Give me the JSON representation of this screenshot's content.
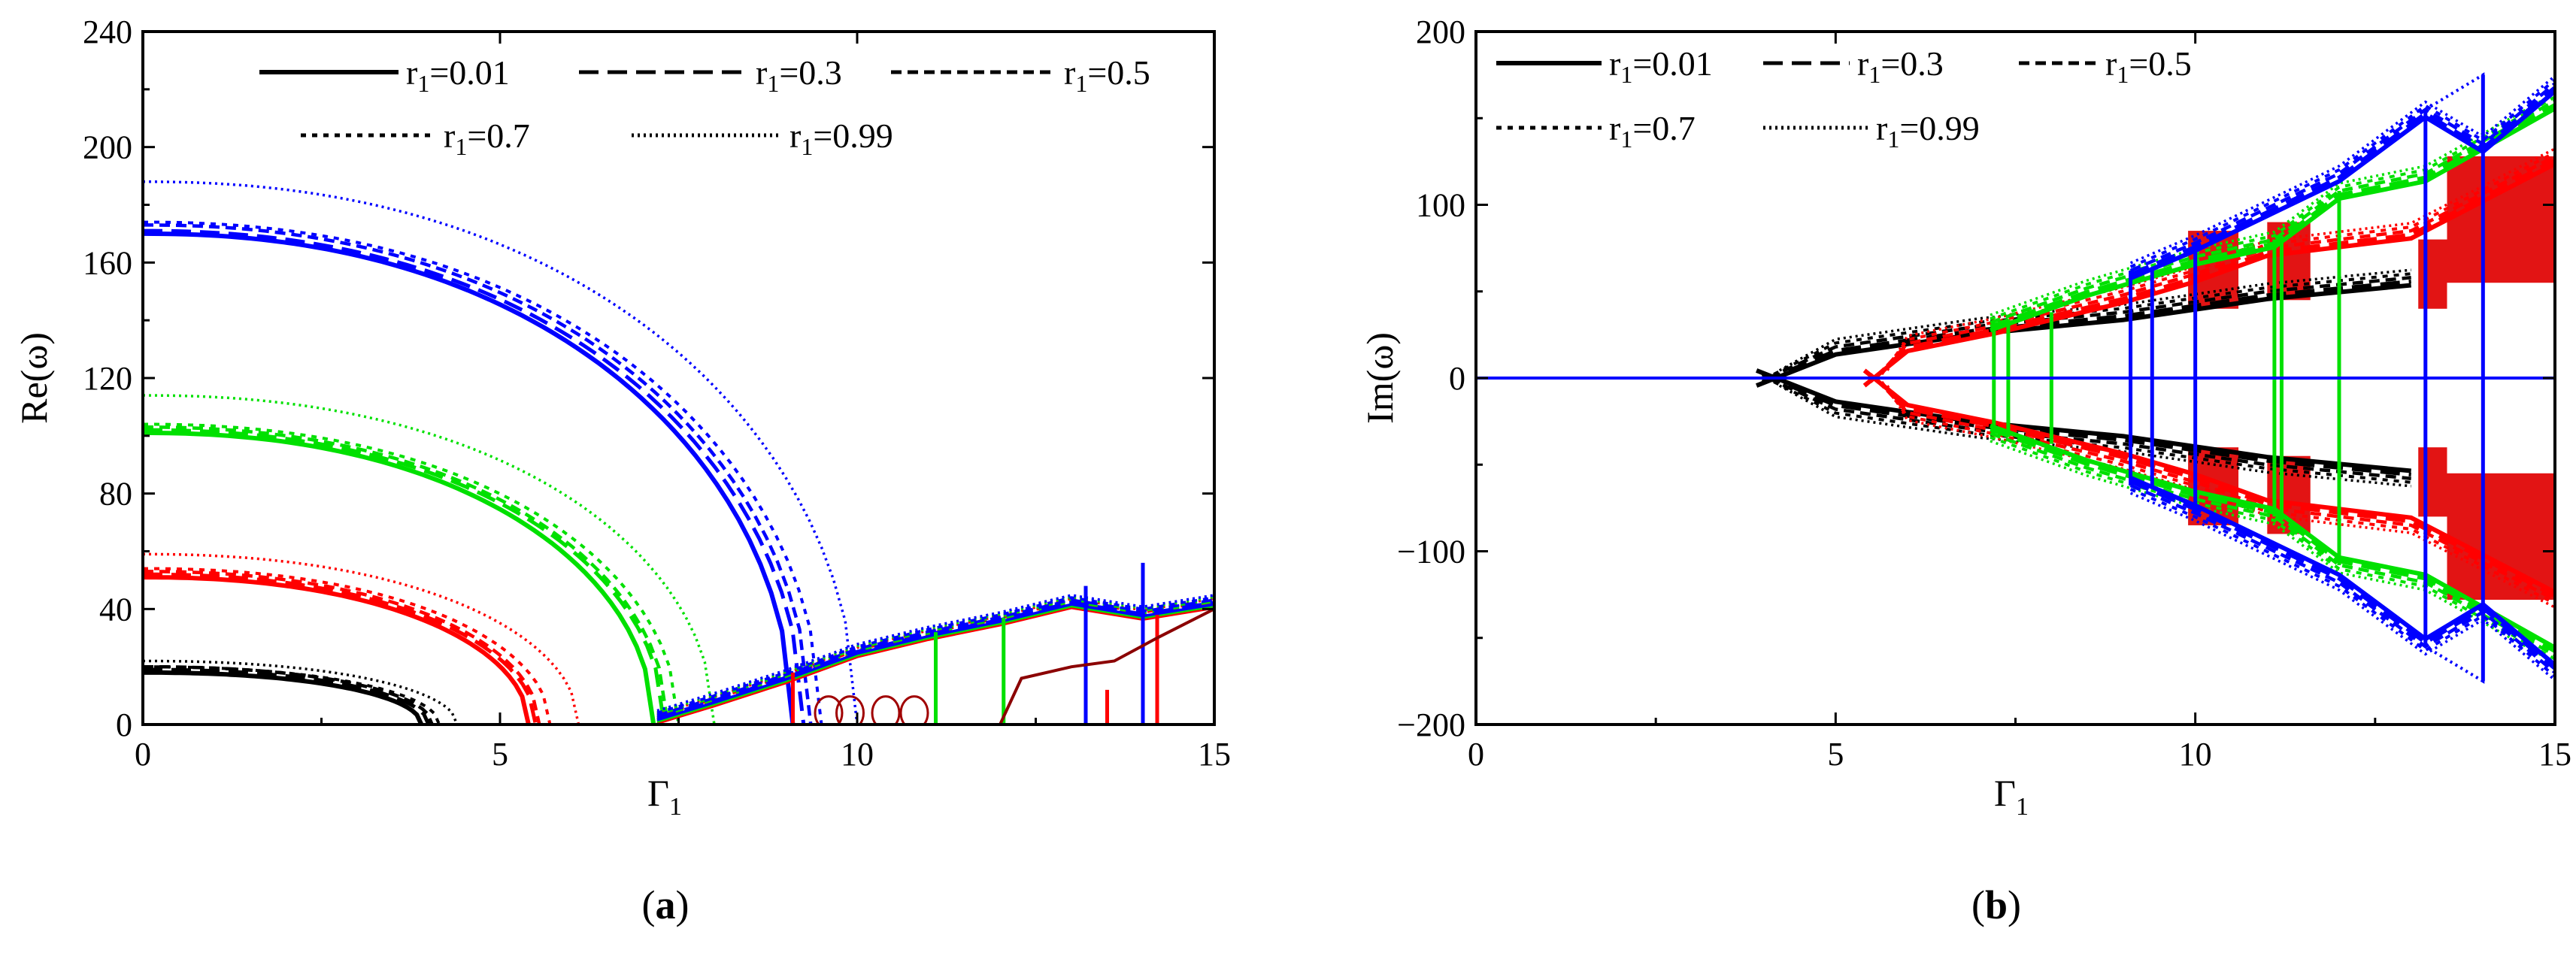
{
  "figure": {
    "panels": [
      {
        "id": "a",
        "label": "(a)",
        "label_open": "(",
        "label_letter": "a",
        "label_close": ")"
      },
      {
        "id": "b",
        "label": "(b)",
        "label_open": "(",
        "label_letter": "b",
        "label_close": ")"
      }
    ]
  },
  "chart_data": [
    {
      "type": "line",
      "panel": "a",
      "title": "",
      "xlabel": "Γ1",
      "xlabel_main": "Γ",
      "xlabel_sub": "1",
      "ylabel": "Re(ω)",
      "xlim": [
        0,
        15
      ],
      "ylim": [
        0,
        240
      ],
      "xticks": [
        0,
        5,
        10,
        15
      ],
      "yticks": [
        0,
        40,
        80,
        120,
        160,
        200,
        240
      ],
      "grid": false,
      "legend_placement": "top-right",
      "legend": [
        {
          "name": "r1=0.01",
          "prefix": "r",
          "sub": "1",
          "suffix": "=0.01",
          "style": "solid"
        },
        {
          "name": "r1=0.3",
          "prefix": "r",
          "sub": "1",
          "suffix": "=0.3",
          "style": "dash"
        },
        {
          "name": "r1=0.5",
          "prefix": "r",
          "sub": "1",
          "suffix": "=0.5",
          "style": "shortdash"
        },
        {
          "name": "r1=0.7",
          "prefix": "r",
          "sub": "1",
          "suffix": "=0.7",
          "style": "dot"
        },
        {
          "name": "r1=0.99",
          "prefix": "r",
          "sub": "1",
          "suffix": "=0.99",
          "style": "fine"
        }
      ],
      "series_colors": {
        "mode1": "#000000",
        "mode2": "#ff0000",
        "mode3": "#00e000",
        "mode4": "#0000ff"
      },
      "series": [
        {
          "mode": "mode1",
          "color": "#000000",
          "r1": [
            0.01,
            0.3,
            0.5,
            0.7,
            0.99
          ],
          "start_values": [
            18,
            19,
            20,
            20,
            22
          ],
          "zero_crossing": [
            3.9,
            4.0,
            4.05,
            4.15,
            4.4
          ]
        },
        {
          "mode": "mode2",
          "color": "#ff0000",
          "r1": [
            0.01,
            0.3,
            0.5,
            0.7,
            0.99
          ],
          "start_values": [
            51,
            52,
            53,
            54,
            59
          ],
          "zero_crossing": [
            5.4,
            5.5,
            5.55,
            5.7,
            6.1
          ]
        },
        {
          "mode": "mode3",
          "color": "#00e000",
          "r1": [
            0.01,
            0.3,
            0.5,
            0.7,
            0.99
          ],
          "start_values": [
            101,
            102,
            103,
            104,
            114
          ],
          "zero_crossing": [
            7.15,
            7.3,
            7.35,
            7.5,
            8.0
          ]
        },
        {
          "mode": "mode4",
          "color": "#0000ff",
          "r1": [
            0.01,
            0.3,
            0.5,
            0.7,
            0.99
          ],
          "start_values": [
            170,
            171,
            173,
            174,
            188
          ],
          "zero_crossing": [
            9.1,
            9.25,
            9.35,
            9.5,
            10.0
          ]
        },
        {
          "mode": "rising-branch",
          "color": "#0000ff",
          "x": [
            7.2,
            8.0,
            9.0,
            10.0,
            11.0,
            12.0,
            13.0,
            14.0,
            15.0
          ],
          "values": [
            2,
            8,
            16,
            25,
            31,
            36,
            42,
            38,
            42
          ]
        }
      ]
    },
    {
      "type": "line",
      "panel": "b",
      "title": "",
      "xlabel": "Γ1",
      "xlabel_main": "Γ",
      "xlabel_sub": "1",
      "ylabel": "Im(ω)",
      "xlim": [
        0,
        15
      ],
      "ylim": [
        -200,
        200
      ],
      "xticks": [
        0,
        5,
        10,
        15
      ],
      "yticks": [
        -200,
        -100,
        0,
        100,
        200
      ],
      "ytick_labels": [
        "−200",
        "−100",
        "0",
        "100",
        "200"
      ],
      "grid": false,
      "legend_placement": "top-left",
      "legend": [
        {
          "name": "r1=0.01",
          "prefix": "r",
          "sub": "1",
          "suffix": "=0.01",
          "style": "solid"
        },
        {
          "name": "r1=0.3",
          "prefix": "r",
          "sub": "1",
          "suffix": "=0.3",
          "style": "dash"
        },
        {
          "name": "r1=0.5",
          "prefix": "r",
          "sub": "1",
          "suffix": "=0.5",
          "style": "shortdash"
        },
        {
          "name": "r1=0.7",
          "prefix": "r",
          "sub": "1",
          "suffix": "=0.7",
          "style": "dot"
        },
        {
          "name": "r1=0.99",
          "prefix": "r",
          "sub": "1",
          "suffix": "=0.99",
          "style": "fine"
        }
      ],
      "series": [
        {
          "mode": "baseline",
          "color": "#0000ff",
          "x": [
            0,
            15
          ],
          "values": [
            0,
            0
          ]
        },
        {
          "mode": "mode1",
          "color": "#000000",
          "branch_start": 3.9,
          "envelope": [
            [
              3.9,
              0
            ],
            [
              5,
              18
            ],
            [
              7,
              30
            ],
            [
              9,
              38
            ],
            [
              11,
              50
            ],
            [
              13,
              58
            ]
          ]
        },
        {
          "mode": "mode2",
          "color": "#ff0000",
          "branch_start": 5.4,
          "envelope": [
            [
              5.4,
              0
            ],
            [
              6,
              20
            ],
            [
              7.2,
              30
            ],
            [
              9,
              48
            ],
            [
              10,
              60
            ],
            [
              11,
              75
            ],
            [
              13,
              85
            ],
            [
              15,
              128
            ]
          ]
        },
        {
          "mode": "mode3",
          "color": "#00e000",
          "branch_start": 7.15,
          "envelope": [
            [
              7.15,
              32
            ],
            [
              8.5,
              52
            ],
            [
              10,
              70
            ],
            [
              11.1,
              80
            ],
            [
              12,
              108
            ],
            [
              13.2,
              118
            ],
            [
              15,
              160
            ]
          ]
        },
        {
          "mode": "mode4",
          "color": "#0000ff",
          "branch_start": 9.1,
          "envelope": [
            [
              9.1,
              62
            ],
            [
              10,
              78
            ],
            [
              12,
              118
            ],
            [
              13.2,
              155
            ],
            [
              14,
              135
            ],
            [
              15,
              170
            ]
          ]
        }
      ]
    }
  ]
}
